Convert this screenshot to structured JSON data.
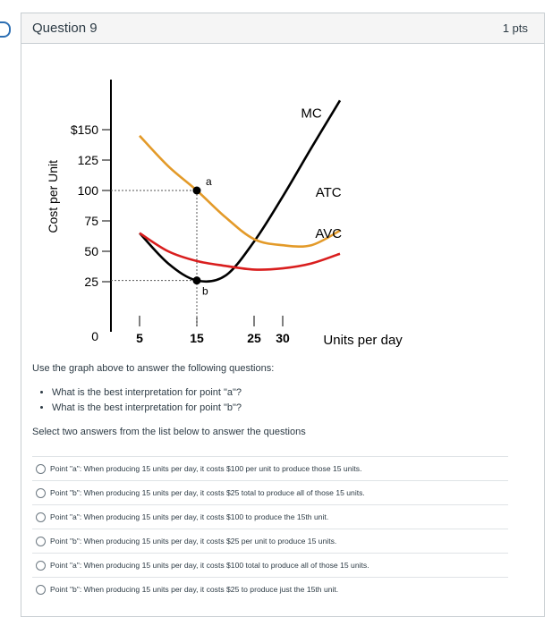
{
  "question": {
    "title": "Question 9",
    "points": "1 pts"
  },
  "chart_data": {
    "type": "line",
    "ylabel": "Cost per Unit",
    "xlabel": "Units per day",
    "y_ticks": [
      "$150",
      "125",
      "100",
      "75",
      "50",
      "25"
    ],
    "y_tick_values": [
      150,
      125,
      100,
      75,
      50,
      25
    ],
    "x_ticks": [
      "5",
      "15",
      "25",
      "30"
    ],
    "x_tick_values": [
      5,
      15,
      25,
      30
    ],
    "origin_label": "0",
    "series": [
      {
        "name": "MC",
        "color": "#000000",
        "x": [
          5,
          10,
          15,
          20,
          25,
          30,
          35,
          40
        ],
        "y": [
          65,
          40,
          26,
          30,
          58,
          95,
          135,
          174
        ]
      },
      {
        "name": "ATC",
        "color": "#e39a29",
        "x": [
          5,
          10,
          15,
          20,
          25,
          30,
          35,
          40
        ],
        "y": [
          145,
          120,
          100,
          78,
          60,
          55,
          55,
          67
        ]
      },
      {
        "name": "AVC",
        "color": "#d91e1e",
        "x": [
          5,
          10,
          15,
          20,
          25,
          30,
          35,
          40
        ],
        "y": [
          65,
          50,
          42,
          38,
          35,
          36,
          40,
          48
        ]
      }
    ],
    "points": [
      {
        "label": "a",
        "x": 15,
        "y": 100
      },
      {
        "label": "b",
        "x": 15,
        "y": 26
      }
    ]
  },
  "prompt": "Use the graph above to answer the following questions:",
  "bullets": [
    "What is the best interpretation for point \"a\"?",
    "What is the best interpretation for point \"b\"?"
  ],
  "instruction": "Select two answers from the list below to answer the questions",
  "answers": [
    "Point \"a\": When producing 15 units per day, it costs $100 per unit to produce those 15 units.",
    "Point \"b\": When producing 15 units per day, it costs $25 total to produce all of those 15 units.",
    "Point \"a\": When producing 15 units per day, it costs $100 to produce the 15th unit.",
    "Point \"b\": When producing 15 units per day, it costs $25 per unit to produce 15 units.",
    "Point \"a\": When producing 15 units per day, it costs $100 total to produce all of those 15 units.",
    "Point \"b\": When producing 15 units per day, it costs $25 to produce just the 15th unit."
  ]
}
